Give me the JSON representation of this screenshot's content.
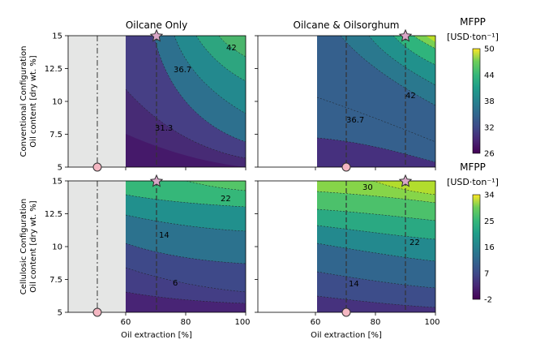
{
  "chart_data": {
    "type": "contour",
    "column_titles": [
      "Oilcane Only",
      "Oilcane & Oilsorghum"
    ],
    "row_labels": [
      [
        "Conventional Configuration",
        "Oil content [dry wt. %]"
      ],
      [
        "Cellulosic Configuration",
        "Oil content [dry wt. %]"
      ]
    ],
    "xlabel": "Oil extraction [%]",
    "x_ticks_left": [
      "60",
      "80",
      "100"
    ],
    "x_ticks_right": [
      "60",
      "80",
      "100"
    ],
    "y_ticks": [
      "5",
      "7.5",
      "10",
      "12.5",
      "15"
    ],
    "xlim_left": [
      40,
      100
    ],
    "xlim_right": [
      40,
      100
    ],
    "ylim": [
      5,
      15
    ],
    "shaded_region_left": [
      40,
      60
    ],
    "colorbars": [
      {
        "title": "MFPP",
        "unit": "[USD·ton⁻¹]",
        "ticks": [
          "26",
          "32",
          "38",
          "44",
          "50"
        ],
        "range": [
          26,
          50
        ]
      },
      {
        "title": "MFPP",
        "unit": "[USD·ton⁻¹]",
        "ticks": [
          "-2",
          "7",
          "16",
          "25",
          "34"
        ],
        "range": [
          -2,
          34
        ]
      }
    ],
    "panels": [
      {
        "row": 0,
        "col": 0,
        "name": "Conventional / Oilcane Only",
        "contour_labels": [
          {
            "text": "42",
            "x": 95,
            "y": 14.1
          },
          {
            "text": "36.7",
            "x": 80,
            "y": 12.3
          },
          {
            "text": "31.3",
            "x": 75,
            "y": 8.0
          }
        ],
        "baseline": {
          "x": 50,
          "y": 5
        },
        "target": {
          "x": 70,
          "y": 15
        }
      },
      {
        "row": 0,
        "col": 1,
        "name": "Conventional / Oilcane & Oilsorghum",
        "contour_labels": [
          {
            "text": "42",
            "x": 93,
            "y": 10.4
          },
          {
            "text": "36.7",
            "x": 72,
            "y": 8.4
          }
        ],
        "baseline": {
          "x": 70,
          "y": 5
        },
        "target": {
          "x": 90,
          "y": 15
        }
      },
      {
        "row": 1,
        "col": 0,
        "name": "Cellulosic / Oilcane Only",
        "contour_labels": [
          {
            "text": "22",
            "x": 94,
            "y": 13.5
          },
          {
            "text": "14",
            "x": 73,
            "y": 10.8
          },
          {
            "text": "6",
            "x": 78,
            "y": 6.7
          }
        ],
        "baseline": {
          "x": 50,
          "y": 5
        },
        "target": {
          "x": 70,
          "y": 15
        }
      },
      {
        "row": 1,
        "col": 1,
        "name": "Cellulosic / Oilcane & Oilsorghum",
        "contour_labels": [
          {
            "text": "30",
            "x": 75,
            "y": 14.6
          },
          {
            "text": "22",
            "x": 93,
            "y": 10.3
          },
          {
            "text": "14",
            "x": 73,
            "y": 7.0
          }
        ],
        "baseline": {
          "x": 70,
          "y": 5
        },
        "target": {
          "x": 90,
          "y": 15
        }
      }
    ]
  }
}
